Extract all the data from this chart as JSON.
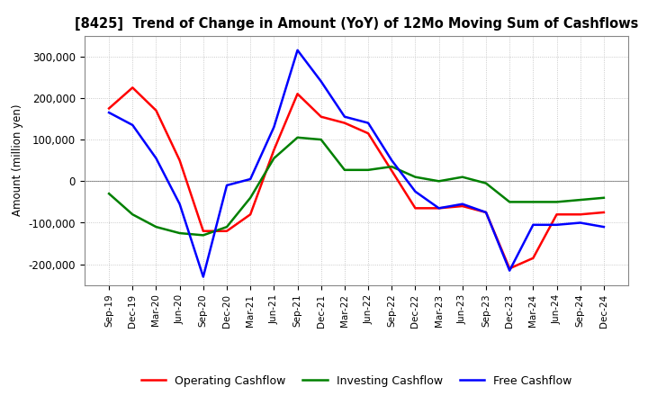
{
  "title": "[8425]  Trend of Change in Amount (YoY) of 12Mo Moving Sum of Cashflows",
  "ylabel": "Amount (million yen)",
  "ylim": [
    -250000,
    350000
  ],
  "yticks": [
    -200000,
    -100000,
    0,
    100000,
    200000,
    300000
  ],
  "x_labels": [
    "Sep-19",
    "Dec-19",
    "Mar-20",
    "Jun-20",
    "Sep-20",
    "Dec-20",
    "Mar-21",
    "Jun-21",
    "Sep-21",
    "Dec-21",
    "Mar-22",
    "Jun-22",
    "Sep-22",
    "Dec-22",
    "Mar-23",
    "Jun-23",
    "Sep-23",
    "Dec-23",
    "Mar-24",
    "Jun-24",
    "Sep-24",
    "Dec-24"
  ],
  "operating": [
    175000,
    225000,
    170000,
    50000,
    -120000,
    -120000,
    -80000,
    75000,
    210000,
    155000,
    140000,
    115000,
    25000,
    -65000,
    -65000,
    -60000,
    -75000,
    -210000,
    -185000,
    -80000,
    -80000,
    -75000
  ],
  "investing": [
    -30000,
    -80000,
    -110000,
    -125000,
    -130000,
    -110000,
    -40000,
    55000,
    105000,
    100000,
    27000,
    27000,
    35000,
    10000,
    0,
    10000,
    -5000,
    -50000,
    -50000,
    -50000,
    -45000,
    -40000
  ],
  "free": [
    165000,
    135000,
    55000,
    -55000,
    -230000,
    -10000,
    5000,
    130000,
    315000,
    240000,
    155000,
    140000,
    50000,
    -25000,
    -65000,
    -55000,
    -75000,
    -215000,
    -105000,
    -105000,
    -100000,
    -110000
  ],
  "operating_color": "#ff0000",
  "investing_color": "#008000",
  "free_color": "#0000ff",
  "background_color": "#ffffff",
  "grid_color": "#bbbbbb"
}
